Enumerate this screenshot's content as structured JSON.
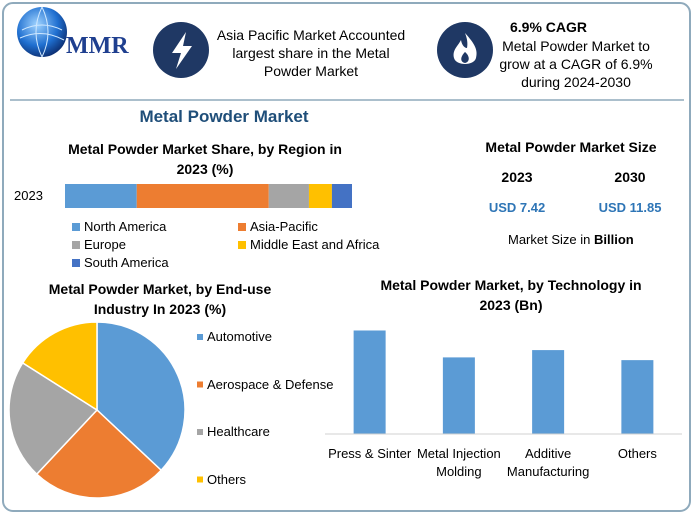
{
  "header": {
    "logo": "MMR",
    "highlight_1": "Asia Pacific Market Accounted largest share in the Metal Powder Market",
    "highlight_2_title": "6.9% CAGR",
    "highlight_2": "Metal Powder Market to grow at a CAGR of 6.9% during 2024-2030"
  },
  "title": "Metal Powder Market",
  "market_size": {
    "title": "Metal Powder Market Size",
    "years": [
      "2023",
      "2030"
    ],
    "values": [
      "USD 7.42",
      "USD 11.85"
    ],
    "note": "Market Size in",
    "note_unit": "Billion"
  },
  "chart_data": [
    {
      "type": "stacked_bar",
      "orientation": "horizontal",
      "title": "Metal Powder Market Share, by Region in 2023 (%)",
      "categories": [
        "2023"
      ],
      "xlim": [
        0,
        100
      ],
      "legend": "bottom",
      "series": [
        {
          "name": "North America",
          "color": "#5b9bd5",
          "values": [
            25
          ]
        },
        {
          "name": "Asia-Pacific",
          "color": "#ed7d31",
          "values": [
            46
          ]
        },
        {
          "name": "Europe",
          "color": "#a5a5a5",
          "values": [
            14
          ]
        },
        {
          "name": "Middle East and Africa",
          "color": "#ffc000",
          "values": [
            8
          ]
        },
        {
          "name": "South America",
          "color": "#4472c4",
          "values": [
            7
          ]
        }
      ]
    },
    {
      "type": "pie",
      "title": "Metal Powder Market, by End-use Industry In 2023 (%)",
      "categories": [
        "Automotive",
        "Aerospace & Defense",
        "Healthcare",
        "Others"
      ],
      "values": [
        37,
        25,
        22,
        16
      ],
      "colors": [
        "#5b9bd5",
        "#ed7d31",
        "#a5a5a5",
        "#ffc000"
      ],
      "legend": "right"
    },
    {
      "type": "bar",
      "title": "Metal Powder Market, by Technology in 2023 (Bn)",
      "categories": [
        "Press & Sinter",
        "Metal Injection Molding",
        "Additive Manufacturing",
        "Others"
      ],
      "values": [
        2.27,
        1.68,
        1.84,
        1.62
      ],
      "color": "#5b9bd5",
      "ylim": [
        0,
        2.5
      ]
    }
  ]
}
